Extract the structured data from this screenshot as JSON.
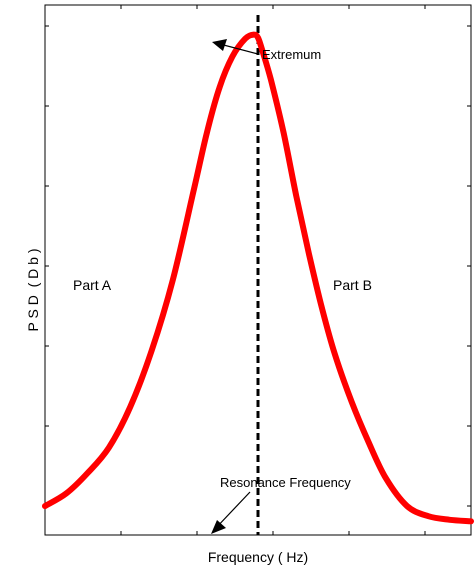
{
  "chart_data": {
    "type": "line",
    "xlabel": "Frequency ( Hz)",
    "ylabel": "P S D  ( D b )",
    "x_ticks_labeled": false,
    "y_ticks_labeled": false,
    "grid": false,
    "legend": "none",
    "xlim": [
      0,
      1
    ],
    "ylim": [
      0,
      1
    ],
    "series": [
      {
        "color": "#ff0000",
        "x": [
          0.0,
          0.05,
          0.1,
          0.15,
          0.2,
          0.25,
          0.3,
          0.35,
          0.38,
          0.41,
          0.44,
          0.47,
          0.49,
          0.5,
          0.51,
          0.53,
          0.56,
          0.59,
          0.62,
          0.65,
          0.68,
          0.72,
          0.76,
          0.8,
          0.85,
          0.9,
          0.95,
          1.0
        ],
        "y": [
          0.055,
          0.08,
          0.12,
          0.17,
          0.25,
          0.36,
          0.5,
          0.68,
          0.79,
          0.88,
          0.94,
          0.975,
          0.983,
          0.977,
          0.952,
          0.895,
          0.79,
          0.665,
          0.55,
          0.445,
          0.355,
          0.26,
          0.18,
          0.11,
          0.055,
          0.035,
          0.028,
          0.025
        ]
      }
    ],
    "reference_line": {
      "x": 0.5,
      "style": "dashed",
      "color": "#000000"
    },
    "annotations": {
      "extremum": "Extremum",
      "resonance": "Resonance Frequency",
      "part_a": "Part A",
      "part_b": "Part B"
    }
  }
}
